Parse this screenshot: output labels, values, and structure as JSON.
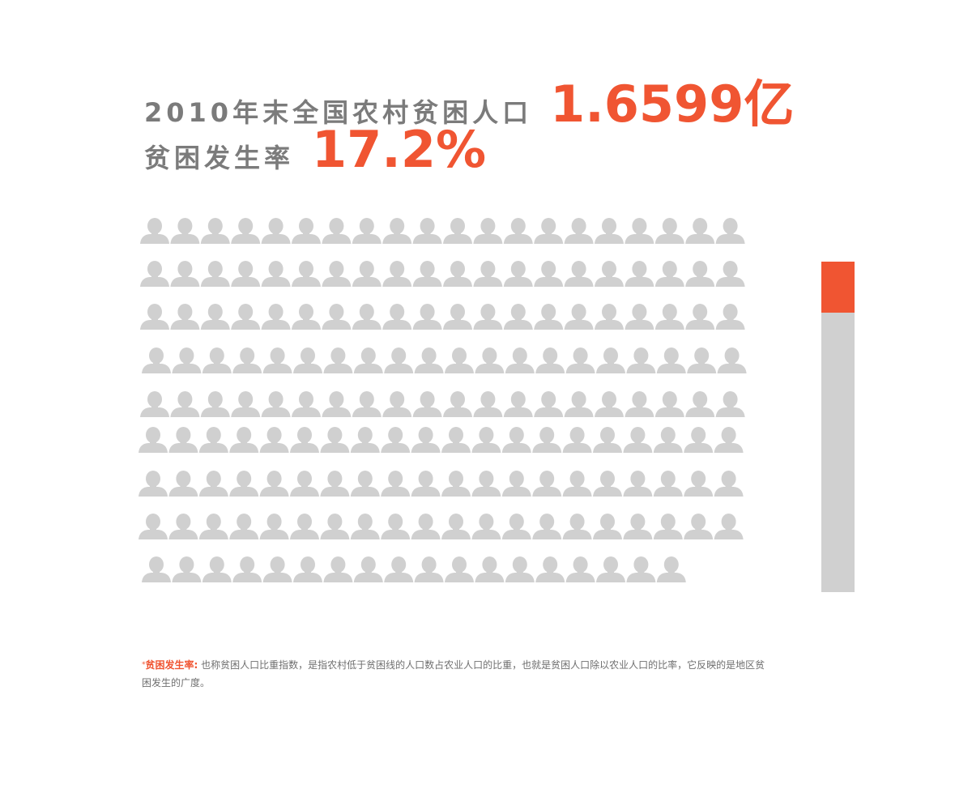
{
  "headline": {
    "line1_label": "2010年末全国农村贫困人口",
    "line1_value": "1.6599亿",
    "line2_label": "贫困发生率",
    "line2_value": "17.2%"
  },
  "chart_data": {
    "type": "pictograph",
    "icon": "person-icon",
    "icon_count": 178,
    "columns": 20,
    "rate_bar": {
      "value": 17.2,
      "max": 100,
      "unit": "%"
    }
  },
  "colors": {
    "accent": "#f05532",
    "icon": "#d0d0d0",
    "label": "#7b7b7b"
  },
  "footnote": {
    "star": "*",
    "key": "贫困发生率:",
    "text": "也称贫困人口比重指数，是指农村低于贫困线的人口数占农业人口的比重，也就是贫困人口除以农业人口的比率，它反映的是地区贫困发生的广度。"
  }
}
